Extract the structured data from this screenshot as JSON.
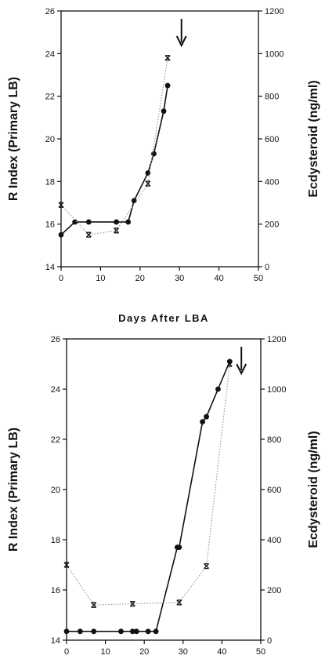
{
  "middle_label": "Days After LBA",
  "chart_data": [
    {
      "type": "line",
      "title": "",
      "ylabel": "R Index (Primary LB)",
      "y2label": "Ecdysteroid (ng/ml)",
      "xlim": [
        0,
        50
      ],
      "ylim": [
        14,
        26
      ],
      "y2lim": [
        0,
        1200
      ],
      "x_ticks": [
        "0",
        "10",
        "20",
        "30",
        "40",
        "50"
      ],
      "y_ticks": [
        "14",
        "16",
        "18",
        "20",
        "22",
        "24",
        "26"
      ],
      "y2_ticks": [
        "0",
        "200",
        "400",
        "600",
        "800",
        "1000",
        "1200"
      ],
      "arrow_at_x": 30.5,
      "series": [
        {
          "axis": "left",
          "marker": "circle",
          "style": "solid",
          "x": [
            0,
            3.5,
            7,
            14,
            17,
            18.5,
            22,
            23.5,
            26,
            27
          ],
          "y": [
            15.5,
            16.1,
            16.1,
            16.1,
            16.1,
            17.1,
            18.4,
            19.3,
            21.3,
            22.5
          ]
        },
        {
          "axis": "right",
          "marker": "x",
          "style": "dotted",
          "x": [
            0,
            7,
            14,
            22,
            27
          ],
          "y": [
            290,
            150,
            170,
            390,
            980
          ]
        }
      ]
    },
    {
      "type": "line",
      "title": "",
      "ylabel": "R Index (Primary LB)",
      "y2label": "Ecdysteroid (ng/ml)",
      "xlim": [
        0,
        50
      ],
      "ylim": [
        14,
        26
      ],
      "y2lim": [
        0,
        1200
      ],
      "x_ticks": [
        "0",
        "10",
        "20",
        "30",
        "40",
        "50"
      ],
      "y_ticks": [
        "14",
        "16",
        "18",
        "20",
        "22",
        "24",
        "26"
      ],
      "y2_ticks": [
        "0",
        "200",
        "400",
        "600",
        "800",
        "1000",
        "1200"
      ],
      "arrow_at_x": 45,
      "series": [
        {
          "axis": "left",
          "marker": "circle",
          "style": "solid",
          "x": [
            0,
            3.5,
            7,
            14,
            17,
            18,
            21,
            23,
            28.5,
            29,
            35,
            36,
            39,
            42
          ],
          "y": [
            14.35,
            14.35,
            14.35,
            14.35,
            14.35,
            14.35,
            14.35,
            14.35,
            17.7,
            17.7,
            22.7,
            22.9,
            24,
            25.1
          ]
        },
        {
          "axis": "right",
          "marker": "x",
          "style": "dotted",
          "x": [
            0,
            7,
            17,
            29,
            36,
            42
          ],
          "y": [
            300,
            140,
            145,
            150,
            295,
            1100
          ]
        }
      ]
    }
  ]
}
